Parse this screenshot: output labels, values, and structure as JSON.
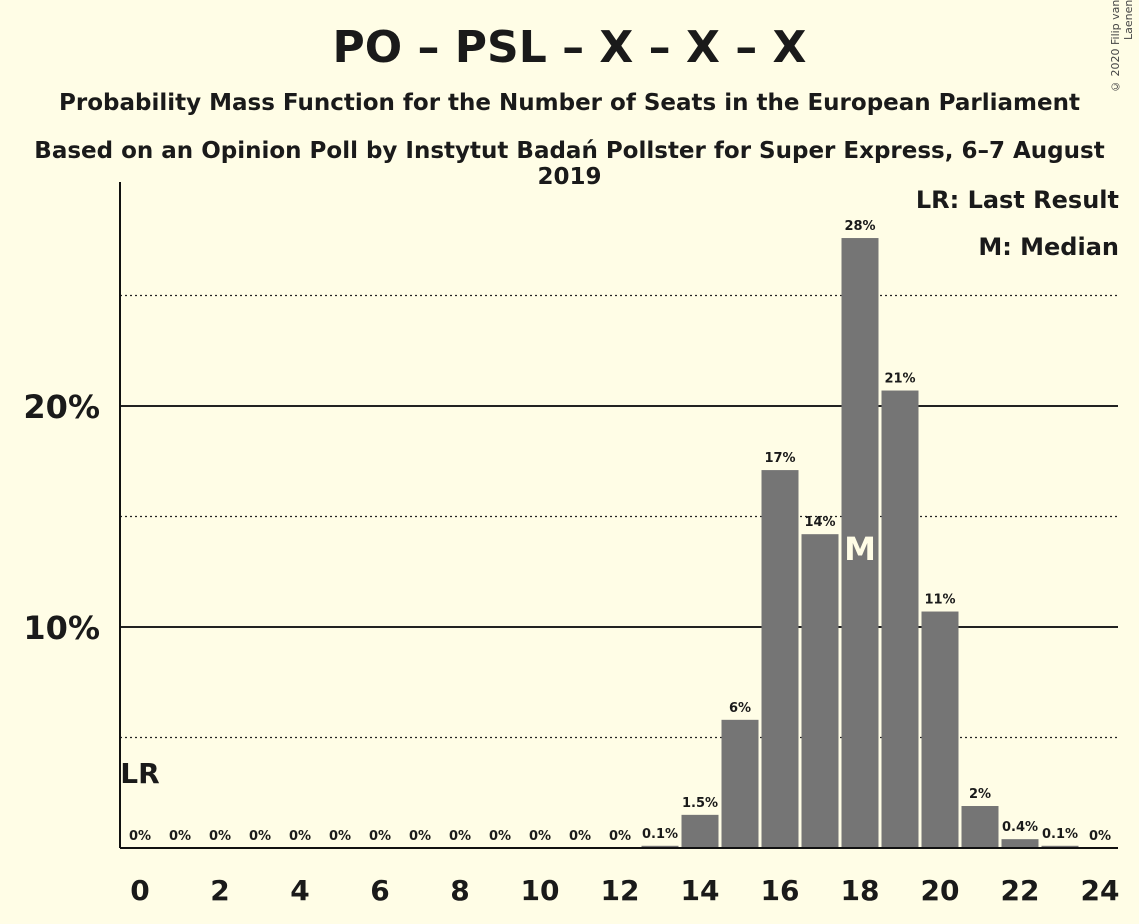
{
  "title": "PO – PSL – X – X – X",
  "subtitle1": "Probability Mass Function for the Number of Seats in the European Parliament",
  "subtitle2": "Based on an Opinion Poll by Instytut Badań Pollster for Super Express, 6–7 August 2019",
  "copyright": "© 2020 Filip van Laenen",
  "legend": {
    "last_result": "LR: Last Result",
    "median": "M: Median"
  },
  "colors": {
    "background": "#FFFDE6",
    "bar": "#757575",
    "text": "#1a1a1a"
  },
  "chart_data": {
    "type": "bar",
    "categories": [
      0,
      1,
      2,
      3,
      4,
      5,
      6,
      7,
      8,
      9,
      10,
      11,
      12,
      13,
      14,
      15,
      16,
      17,
      18,
      19,
      20,
      21,
      22,
      23,
      24
    ],
    "values": [
      0,
      0,
      0,
      0,
      0,
      0,
      0,
      0,
      0,
      0,
      0,
      0,
      0,
      0.1,
      1.5,
      5.8,
      17.1,
      14.2,
      27.6,
      20.7,
      10.7,
      1.9,
      0.4,
      0.1,
      0
    ],
    "data_labels": [
      "0%",
      "0%",
      "0%",
      "0%",
      "0%",
      "0%",
      "0%",
      "0%",
      "0%",
      "0%",
      "0%",
      "0%",
      "0%",
      "0.1%",
      "1.5%",
      "6%",
      "17%",
      "14%",
      "28%",
      "21%",
      "11%",
      "2%",
      "0.4%",
      "0.1%",
      "0%"
    ],
    "x_tick_labels": [
      "0",
      "2",
      "4",
      "6",
      "8",
      "10",
      "12",
      "14",
      "16",
      "18",
      "20",
      "22",
      "24"
    ],
    "y_tick_labels": [
      "10%",
      "20%"
    ],
    "ylim": [
      0,
      30
    ],
    "solid_gridlines": [
      10,
      20
    ],
    "dotted_gridlines": [
      5,
      15,
      25
    ],
    "last_result": {
      "seat": 0,
      "label": "LR"
    },
    "median": {
      "seat": 18,
      "label": "M"
    },
    "legend_placement": "top-right"
  }
}
